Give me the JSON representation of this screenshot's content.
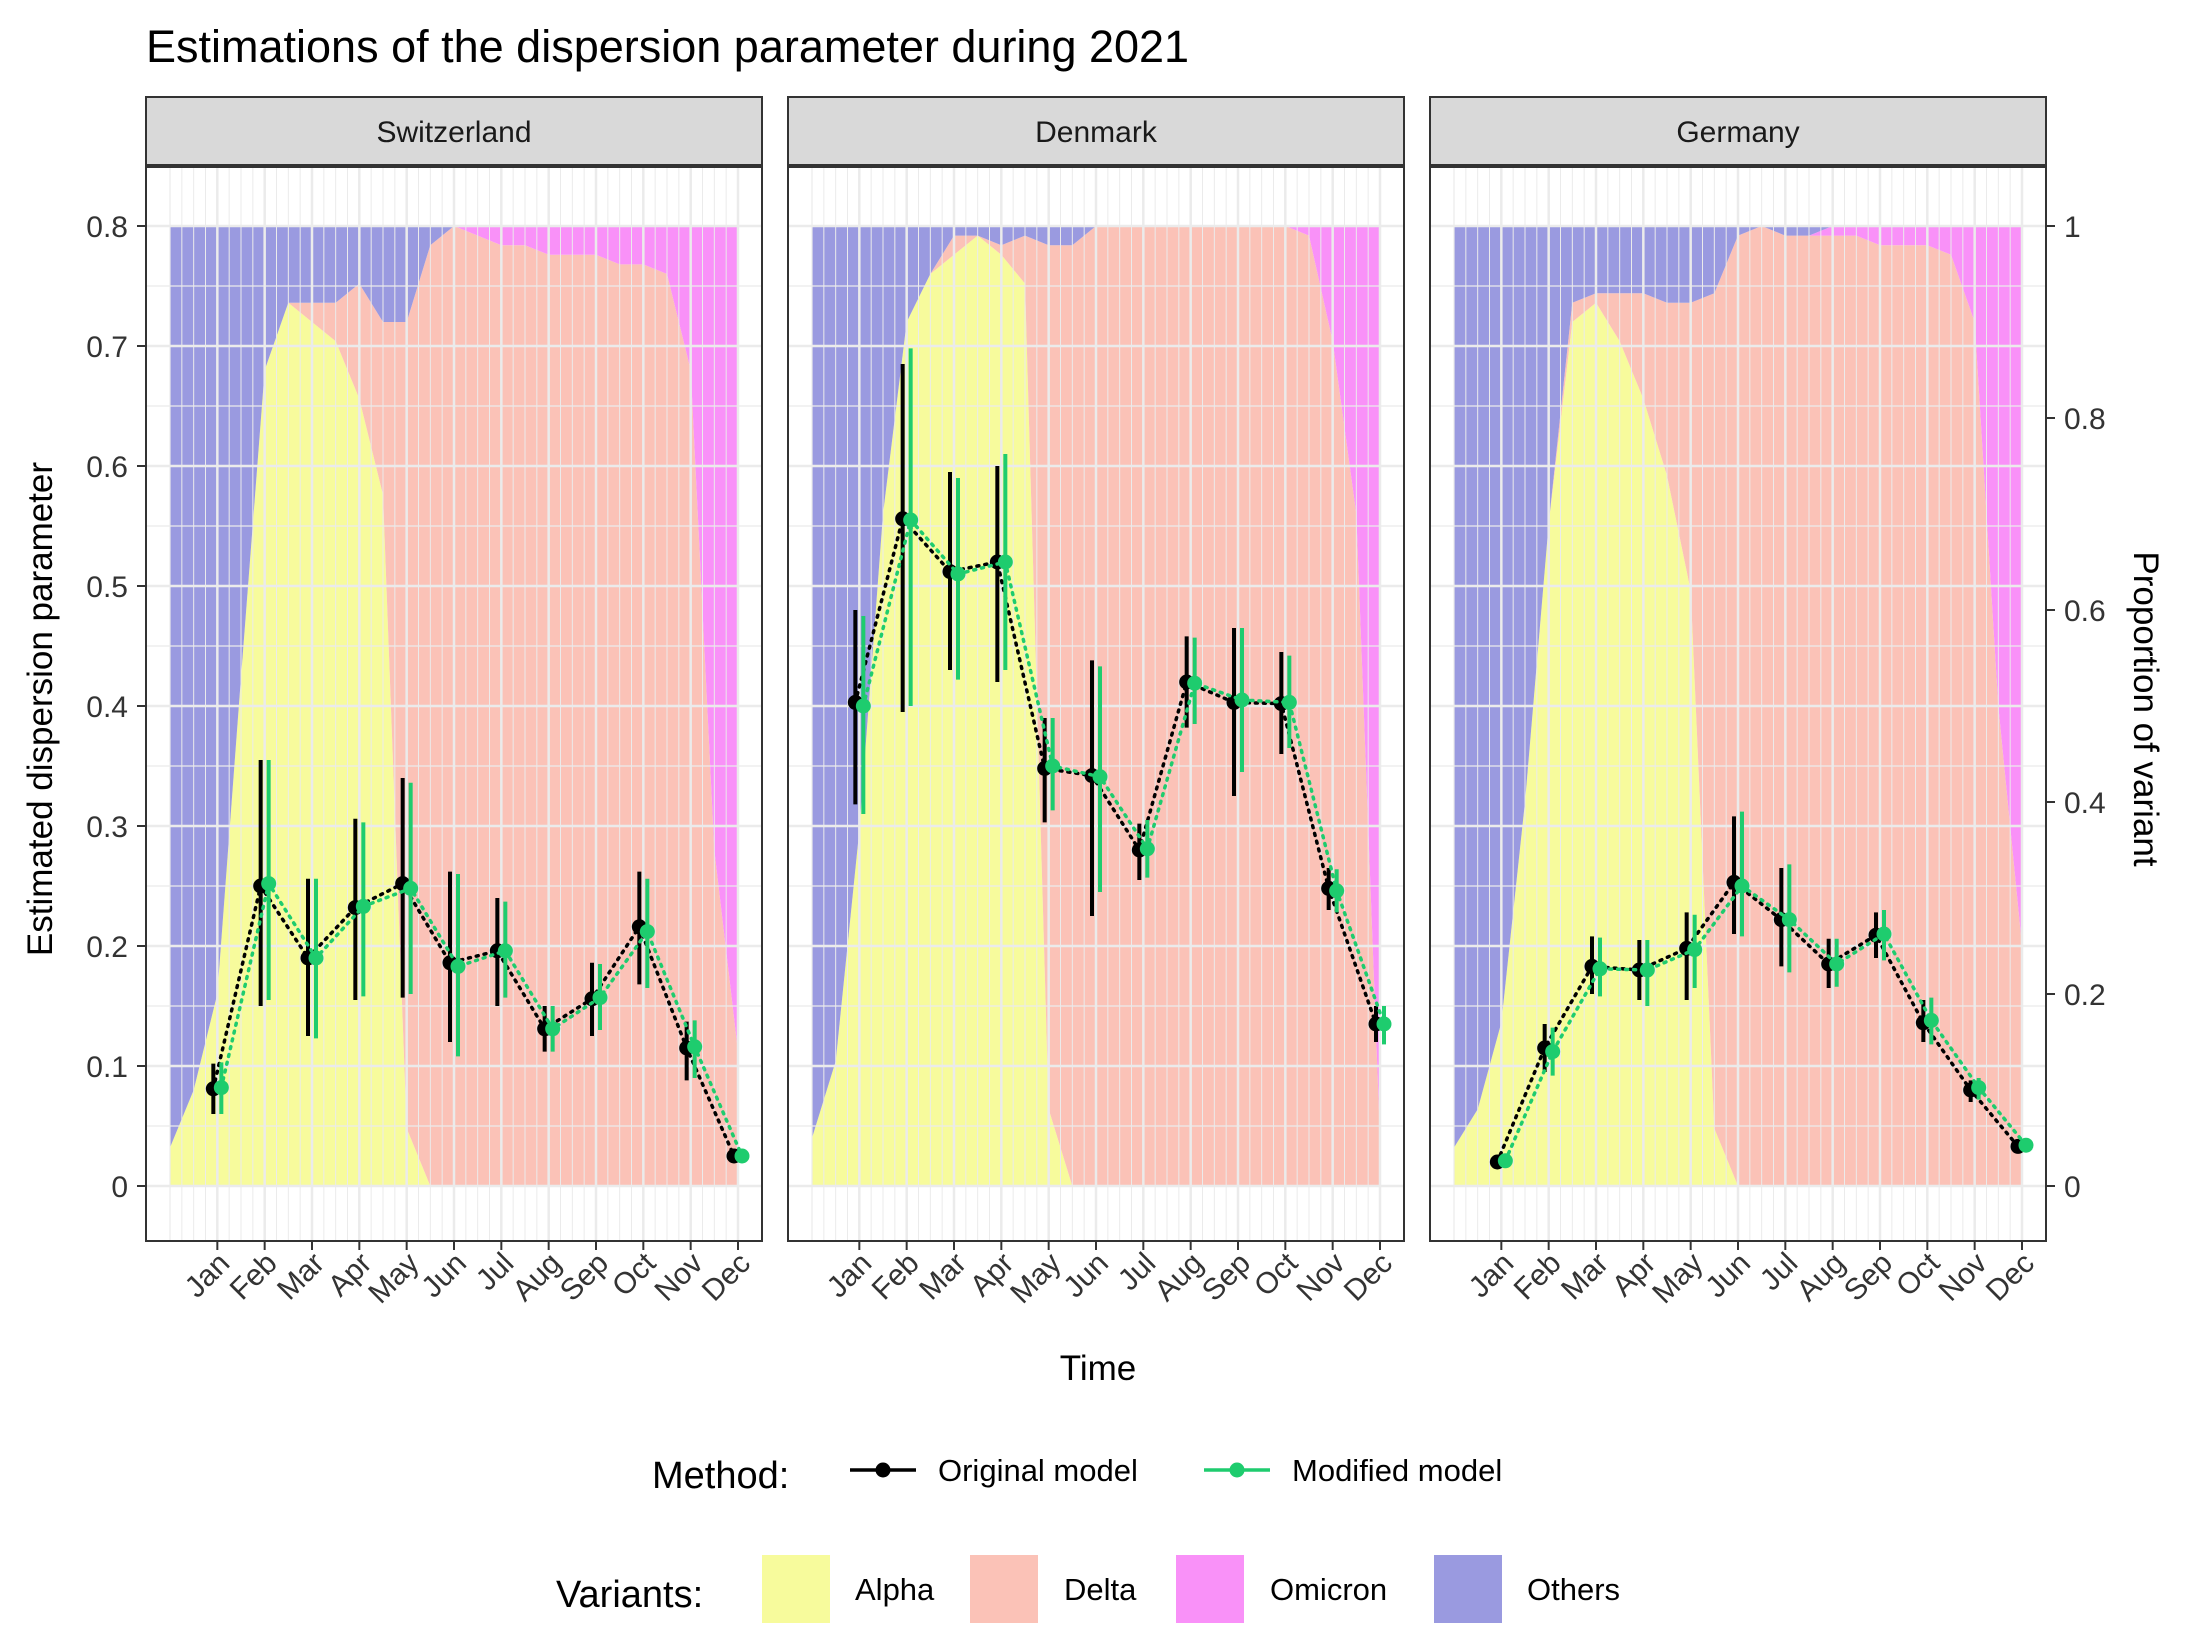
{
  "chart_data": {
    "type": "line",
    "title": "Estimations of the dispersion parameter during 2021",
    "xlabel": "Time",
    "ylabel": "Estimated dispersion parameter",
    "ylabel_right": "Proportion of variant",
    "ylim": [
      -0.05,
      0.85
    ],
    "yticks": [
      "0",
      "0.1",
      "0.2",
      "0.3",
      "0.4",
      "0.5",
      "0.6",
      "0.7",
      "0.8"
    ],
    "ytick_values": [
      0,
      0.1,
      0.2,
      0.3,
      0.4,
      0.5,
      0.6,
      0.7,
      0.8
    ],
    "yticks_right": [
      "0",
      "0.2",
      "0.4",
      "0.6",
      "0.8",
      "1"
    ],
    "ytick_right_values": [
      0,
      0.2,
      0.4,
      0.6,
      0.8,
      1.0
    ],
    "months": [
      "Jan",
      "Feb",
      "Mar",
      "Apr",
      "May",
      "Jun",
      "Jul",
      "Aug",
      "Sep",
      "Oct",
      "Nov",
      "Dec"
    ],
    "legend_method_title": "Method:",
    "legend_variants_title": "Variants:",
    "legend_position": "bottom",
    "grid": true,
    "colors": {
      "original": "#000000",
      "modified": "#1ECC6E",
      "Alpha": "#F7FB9C",
      "Delta": "#FBC2B7",
      "Omicron": "#F991F8",
      "Others": "#9A9AE0"
    },
    "methods": [
      {
        "key": "original",
        "name": "Original model"
      },
      {
        "key": "modified",
        "name": "Modified model"
      }
    ],
    "variants": [
      "Alpha",
      "Delta",
      "Omicron",
      "Others"
    ],
    "panels": [
      {
        "name": "Switzerland",
        "original": {
          "value": [
            0.081,
            0.25,
            0.19,
            0.232,
            0.252,
            0.186,
            0.196,
            0.131,
            0.156,
            0.216,
            0.115,
            0.025
          ],
          "lower": [
            0.06,
            0.15,
            0.125,
            0.155,
            0.157,
            0.12,
            0.15,
            0.112,
            0.125,
            0.168,
            0.088,
            0.02
          ],
          "upper": [
            0.102,
            0.355,
            0.256,
            0.306,
            0.34,
            0.262,
            0.24,
            0.15,
            0.186,
            0.262,
            0.137,
            0.03
          ]
        },
        "modified": {
          "value": [
            0.082,
            0.252,
            0.19,
            0.233,
            0.248,
            0.183,
            0.196,
            0.131,
            0.157,
            0.212,
            0.116,
            0.025
          ],
          "lower": [
            0.06,
            0.155,
            0.123,
            0.158,
            0.16,
            0.108,
            0.157,
            0.112,
            0.13,
            0.165,
            0.09,
            0.02
          ],
          "upper": [
            0.103,
            0.355,
            0.256,
            0.303,
            0.336,
            0.26,
            0.237,
            0.15,
            0.185,
            0.256,
            0.138,
            0.03
          ]
        },
        "variant_share": {
          "t": [
            0.0,
            0.5,
            1.0,
            1.5,
            2.0,
            2.5,
            3.0,
            3.5,
            4.0,
            4.5,
            5.0,
            5.5,
            6.0,
            6.5,
            7.0,
            7.5,
            8.0,
            8.5,
            9.0,
            9.5,
            10.0,
            10.5,
            11.0,
            11.5,
            12.0
          ],
          "Alpha": [
            0.04,
            0.1,
            0.2,
            0.53,
            0.85,
            0.92,
            0.9,
            0.88,
            0.82,
            0.72,
            0.06,
            0.0,
            0.0,
            0.0,
            0.0,
            0.0,
            0.0,
            0.0,
            0.0,
            0.0,
            0.0,
            0.0,
            0.0,
            0.0,
            0.0
          ],
          "Delta": [
            0.0,
            0.0,
            0.0,
            0.0,
            0.0,
            0.0,
            0.02,
            0.04,
            0.12,
            0.18,
            0.84,
            0.98,
            1.0,
            0.99,
            0.98,
            0.98,
            0.97,
            0.97,
            0.97,
            0.96,
            0.96,
            0.95,
            0.85,
            0.35,
            0.14
          ],
          "Omicron": [
            0.0,
            0.0,
            0.0,
            0.0,
            0.0,
            0.0,
            0.0,
            0.0,
            0.0,
            0.0,
            0.0,
            0.0,
            0.0,
            0.01,
            0.02,
            0.02,
            0.03,
            0.03,
            0.03,
            0.04,
            0.04,
            0.05,
            0.15,
            0.65,
            0.86
          ]
        }
      },
      {
        "name": "Denmark",
        "original": {
          "value": [
            0.403,
            0.556,
            0.512,
            0.52,
            0.348,
            0.342,
            0.28,
            0.42,
            0.403,
            0.402,
            0.248,
            0.135
          ],
          "lower": [
            0.318,
            0.395,
            0.43,
            0.42,
            0.303,
            0.225,
            0.255,
            0.382,
            0.325,
            0.36,
            0.23,
            0.12
          ],
          "upper": [
            0.48,
            0.685,
            0.595,
            0.6,
            0.39,
            0.438,
            0.302,
            0.458,
            0.465,
            0.445,
            0.265,
            0.15
          ]
        },
        "modified": {
          "value": [
            0.4,
            0.555,
            0.51,
            0.52,
            0.35,
            0.341,
            0.281,
            0.419,
            0.405,
            0.403,
            0.246,
            0.135
          ],
          "lower": [
            0.31,
            0.4,
            0.422,
            0.43,
            0.313,
            0.245,
            0.257,
            0.385,
            0.345,
            0.365,
            0.228,
            0.118
          ],
          "upper": [
            0.475,
            0.698,
            0.59,
            0.61,
            0.39,
            0.433,
            0.305,
            0.457,
            0.465,
            0.442,
            0.264,
            0.15
          ]
        },
        "variant_share": {
          "t": [
            0.0,
            0.5,
            1.0,
            1.5,
            2.0,
            2.5,
            3.0,
            3.5,
            4.0,
            4.5,
            5.0,
            5.5,
            6.0,
            6.5,
            7.0,
            7.5,
            8.0,
            8.5,
            9.0,
            9.5,
            10.0,
            10.5,
            11.0,
            11.5,
            12.0
          ],
          "Alpha": [
            0.05,
            0.13,
            0.37,
            0.7,
            0.9,
            0.95,
            0.97,
            0.99,
            0.97,
            0.94,
            0.08,
            0.0,
            0.0,
            0.0,
            0.0,
            0.0,
            0.0,
            0.0,
            0.0,
            0.0,
            0.0,
            0.0,
            0.0,
            0.0,
            0.0
          ],
          "Delta": [
            0.0,
            0.0,
            0.0,
            0.0,
            0.0,
            0.0,
            0.02,
            0.0,
            0.01,
            0.05,
            0.9,
            0.98,
            1.0,
            1.0,
            1.0,
            1.0,
            1.0,
            1.0,
            1.0,
            1.0,
            1.0,
            0.99,
            0.88,
            0.7,
            0.05
          ],
          "Omicron": [
            0.0,
            0.0,
            0.0,
            0.0,
            0.0,
            0.0,
            0.0,
            0.0,
            0.0,
            0.0,
            0.0,
            0.0,
            0.0,
            0.0,
            0.0,
            0.0,
            0.0,
            0.0,
            0.0,
            0.0,
            0.0,
            0.01,
            0.12,
            0.3,
            0.95
          ]
        }
      },
      {
        "name": "Germany",
        "original": {
          "value": [
            0.02,
            0.115,
            0.183,
            0.18,
            0.198,
            0.253,
            0.222,
            0.185,
            0.209,
            0.136,
            0.08,
            0.033
          ],
          "lower": [
            0.015,
            0.095,
            0.16,
            0.155,
            0.155,
            0.21,
            0.183,
            0.165,
            0.19,
            0.12,
            0.07,
            0.028
          ],
          "upper": [
            0.025,
            0.135,
            0.208,
            0.205,
            0.228,
            0.308,
            0.265,
            0.206,
            0.228,
            0.155,
            0.088,
            0.037
          ]
        },
        "modified": {
          "value": [
            0.021,
            0.112,
            0.181,
            0.18,
            0.197,
            0.25,
            0.222,
            0.185,
            0.21,
            0.138,
            0.082,
            0.034
          ],
          "lower": [
            0.016,
            0.092,
            0.158,
            0.15,
            0.165,
            0.208,
            0.178,
            0.166,
            0.188,
            0.118,
            0.072,
            0.029
          ],
          "upper": [
            0.026,
            0.132,
            0.207,
            0.205,
            0.226,
            0.312,
            0.268,
            0.206,
            0.23,
            0.157,
            0.09,
            0.038
          ]
        },
        "variant_share": {
          "t": [
            0.0,
            0.5,
            1.0,
            1.5,
            2.0,
            2.5,
            3.0,
            3.5,
            4.0,
            4.5,
            5.0,
            5.5,
            6.0,
            6.5,
            7.0,
            7.5,
            8.0,
            8.5,
            9.0,
            9.5,
            10.0,
            10.5,
            11.0,
            11.5,
            12.0
          ],
          "Alpha": [
            0.04,
            0.08,
            0.17,
            0.4,
            0.69,
            0.9,
            0.92,
            0.88,
            0.82,
            0.74,
            0.62,
            0.06,
            0.0,
            0.0,
            0.0,
            0.0,
            0.0,
            0.0,
            0.0,
            0.0,
            0.0,
            0.0,
            0.0,
            0.0,
            0.0
          ],
          "Delta": [
            0.0,
            0.0,
            0.0,
            0.0,
            0.0,
            0.02,
            0.01,
            0.05,
            0.11,
            0.18,
            0.3,
            0.87,
            0.99,
            1.0,
            0.99,
            0.99,
            0.99,
            0.99,
            0.98,
            0.98,
            0.98,
            0.97,
            0.9,
            0.5,
            0.25
          ],
          "Omicron": [
            0.0,
            0.0,
            0.0,
            0.0,
            0.0,
            0.0,
            0.0,
            0.0,
            0.0,
            0.0,
            0.0,
            0.0,
            0.0,
            0.0,
            0.0,
            0.0,
            0.01,
            0.01,
            0.02,
            0.02,
            0.02,
            0.03,
            0.1,
            0.5,
            0.75
          ]
        }
      }
    ]
  }
}
